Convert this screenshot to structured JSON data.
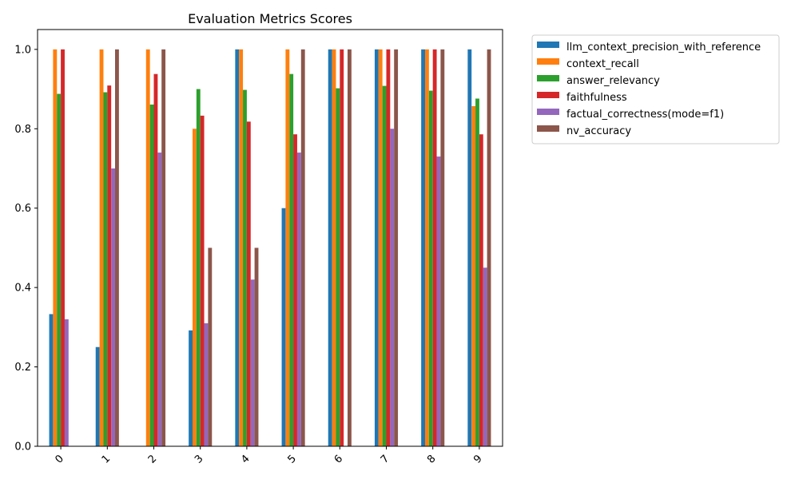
{
  "chart_data": {
    "type": "bar",
    "title": "Evaluation Metrics Scores",
    "xlabel": "",
    "ylabel": "",
    "categories": [
      "0",
      "1",
      "2",
      "3",
      "4",
      "5",
      "6",
      "7",
      "8",
      "9"
    ],
    "ylim": [
      0,
      1.05
    ],
    "yticks": [
      "0.0",
      "0.2",
      "0.4",
      "0.6",
      "0.8",
      "1.0"
    ],
    "grid": false,
    "legend_position": "outside-top-right",
    "series": [
      {
        "name": "llm_context_precision_with_reference",
        "color": "#1f77b4",
        "values": [
          0.333,
          0.25,
          0.0,
          0.292,
          1.0,
          0.6,
          1.0,
          1.0,
          1.0,
          1.0
        ]
      },
      {
        "name": "context_recall",
        "color": "#ff7f0e",
        "values": [
          1.0,
          1.0,
          1.0,
          0.8,
          1.0,
          1.0,
          1.0,
          1.0,
          1.0,
          0.857
        ]
      },
      {
        "name": "answer_relevancy",
        "color": "#2ca02c",
        "values": [
          0.888,
          0.892,
          0.861,
          0.9,
          0.898,
          0.938,
          0.902,
          0.908,
          0.896,
          0.876
        ]
      },
      {
        "name": "faithfulness",
        "color": "#d62728",
        "values": [
          1.0,
          0.909,
          0.938,
          0.833,
          0.818,
          0.786,
          1.0,
          1.0,
          1.0,
          0.786
        ]
      },
      {
        "name": "factual_correctness(mode=f1)",
        "color": "#9467bd",
        "values": [
          0.32,
          0.7,
          0.74,
          0.31,
          0.42,
          0.74,
          0.0,
          0.8,
          0.73,
          0.45
        ]
      },
      {
        "name": "nv_accuracy",
        "color": "#8c564b",
        "values": [
          0.0,
          1.0,
          1.0,
          0.5,
          0.5,
          1.0,
          1.0,
          1.0,
          1.0,
          1.0
        ]
      }
    ]
  }
}
